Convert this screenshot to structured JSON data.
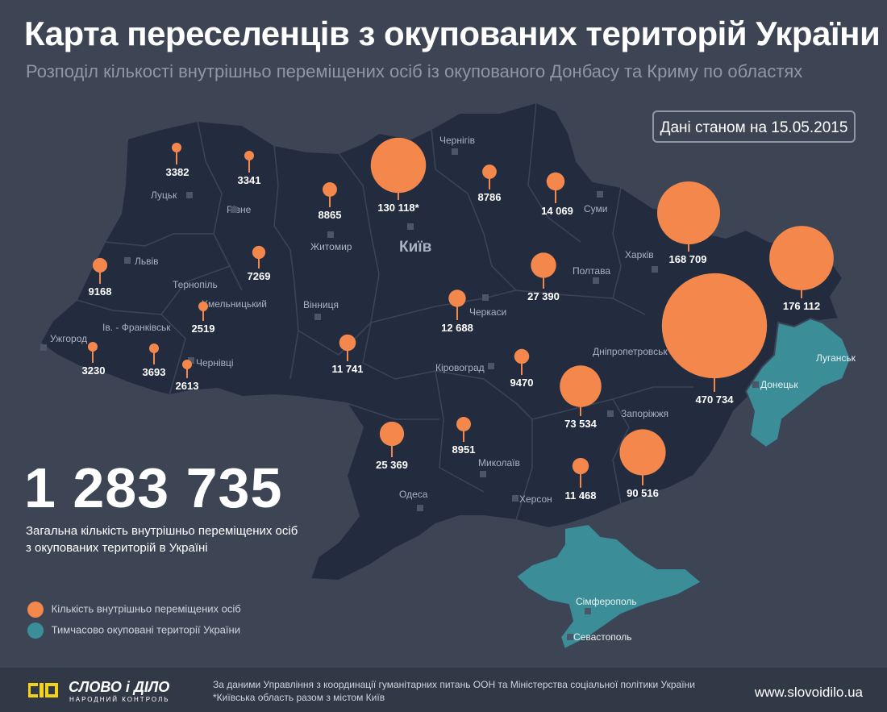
{
  "header": {
    "title": "Карта переселенців з окупованих територій України",
    "subtitle": "Розподіл кількості внутрішньо переміщених осіб із окупованого Донбасу та Криму по областях",
    "date_label": "Дані станом на 15.05.2015"
  },
  "total": {
    "value": "1 283 735",
    "description_line1": "Загальна кількість внутрішньо переміщених осіб",
    "description_line2": "з окупованих територій в Україні"
  },
  "legend": {
    "idp_label": "Кількість внутрішньо переміщених осіб",
    "occupied_label": "Тимчасово окуповані території України"
  },
  "colors": {
    "background": "#3d4555",
    "mainland": "#232c3f",
    "occupied": "#3b8d98",
    "marker": "#f4874b",
    "border": "#3c4558"
  },
  "cities": [
    {
      "name": "Луцьк"
    },
    {
      "name": "Рівне"
    },
    {
      "name": "Житомир"
    },
    {
      "name": "Київ"
    },
    {
      "name": "Чернігів"
    },
    {
      "name": "Суми"
    },
    {
      "name": "Харків"
    },
    {
      "name": "Полтава"
    },
    {
      "name": "Львів"
    },
    {
      "name": "Тернопіль"
    },
    {
      "name": "Хмельницький"
    },
    {
      "name": "Вінниця"
    },
    {
      "name": "Черкаси"
    },
    {
      "name": "Ужгород"
    },
    {
      "name": "Ів. - Франківськ"
    },
    {
      "name": "Чернівці"
    },
    {
      "name": "Кіровоград"
    },
    {
      "name": "Дніпропетровськ"
    },
    {
      "name": "Луганськ"
    },
    {
      "name": "Донецьк"
    },
    {
      "name": "Запоріжжя"
    },
    {
      "name": "Миколаїв"
    },
    {
      "name": "Херсон"
    },
    {
      "name": "Одеса"
    },
    {
      "name": "Сімферополь"
    },
    {
      "name": "Севастополь"
    }
  ],
  "regions": [
    {
      "label": "3382",
      "value": 3382
    },
    {
      "label": "3341",
      "value": 3341
    },
    {
      "label": "8865",
      "value": 8865
    },
    {
      "label": "130 118*",
      "value": 130118
    },
    {
      "label": "8786",
      "value": 8786
    },
    {
      "label": "14 069",
      "value": 14069
    },
    {
      "label": "168 709",
      "value": 168709
    },
    {
      "label": "176 112",
      "value": 176112
    },
    {
      "label": "9168",
      "value": 9168
    },
    {
      "label": "7269",
      "value": 7269
    },
    {
      "label": "27 390",
      "value": 27390
    },
    {
      "label": "2519",
      "value": 2519
    },
    {
      "label": "12 688",
      "value": 12688
    },
    {
      "label": "470 734",
      "value": 470734
    },
    {
      "label": "3230",
      "value": 3230
    },
    {
      "label": "3693",
      "value": 3693
    },
    {
      "label": "2613",
      "value": 2613
    },
    {
      "label": "11 741",
      "value": 11741
    },
    {
      "label": "9470",
      "value": 9470
    },
    {
      "label": "73 534",
      "value": 73534
    },
    {
      "label": "25 369",
      "value": 25369
    },
    {
      "label": "8951",
      "value": 8951
    },
    {
      "label": "11 468",
      "value": 11468
    },
    {
      "label": "90 516",
      "value": 90516
    }
  ],
  "footer": {
    "logo_text": "СЛОВО і ДІЛО",
    "logo_subtext": "НАРОДНИЙ КОНТРОЛЬ",
    "source_line1": "За даними Управління з координації гуманітарних питань ООН та Міністерства соціальної політики України",
    "source_line2": "*Київська область разом з містом Київ",
    "website": "www.slovoidilo.ua"
  }
}
